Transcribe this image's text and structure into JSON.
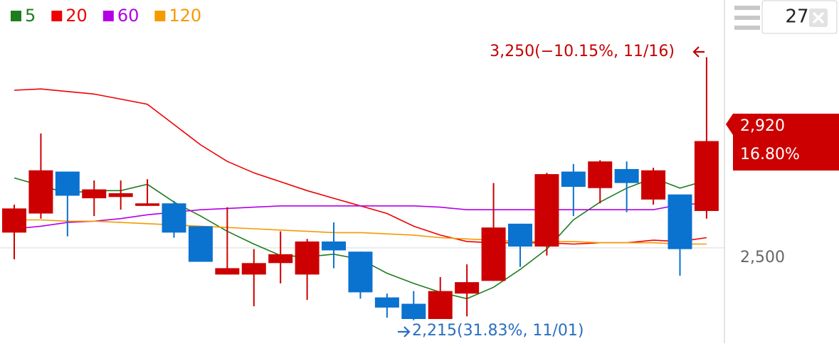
{
  "chart_data": {
    "type": "candlestick",
    "categories": [
      null,
      null,
      null,
      null,
      null,
      null,
      null,
      null,
      null,
      null,
      null,
      null,
      null,
      null,
      null,
      null,
      null,
      null,
      null,
      null,
      null,
      null,
      null,
      null,
      null,
      null,
      null
    ],
    "open": [
      2560,
      2635,
      2800,
      2695,
      2700,
      2665,
      2675,
      2585,
      2395,
      2395,
      2440,
      2395,
      2525,
      2485,
      2305,
      2280,
      2220,
      2320,
      2370,
      2595,
      2505,
      2800,
      2735,
      2810,
      2690,
      2710,
      2645
    ],
    "close": [
      2655,
      2805,
      2705,
      2730,
      2715,
      2675,
      2560,
      2445,
      2420,
      2440,
      2475,
      2525,
      2490,
      2325,
      2265,
      2220,
      2330,
      2365,
      2580,
      2505,
      2790,
      2740,
      2840,
      2755,
      2805,
      2495,
      2920
    ],
    "high": [
      2670,
      2950,
      2800,
      2765,
      2765,
      2770,
      2685,
      2585,
      2660,
      2495,
      2565,
      2535,
      2600,
      2485,
      2320,
      2330,
      2385,
      2435,
      2755,
      2595,
      2795,
      2830,
      2845,
      2840,
      2815,
      2710,
      3250
    ],
    "low": [
      2455,
      2615,
      2545,
      2625,
      2650,
      2665,
      2540,
      2445,
      2395,
      2270,
      2360,
      2295,
      2420,
      2300,
      2225,
      2215,
      2220,
      2230,
      2370,
      2425,
      2470,
      2625,
      2675,
      2640,
      2670,
      2390,
      2615
    ],
    "up_color": "#cc0000",
    "down_color": "#0a72cf",
    "ma": [
      {
        "name": "5",
        "color": "#1e7d1e",
        "values": [
          2775,
          2745,
          2715,
          2725,
          2725,
          2750,
          2680,
          2625,
          2565,
          2515,
          2470,
          2465,
          2475,
          2455,
          2400,
          2360,
          2325,
          2300,
          2345,
          2415,
          2495,
          2610,
          2680,
          2735,
          2775,
          2735,
          2765
        ]
      },
      {
        "name": "20",
        "color": "#ee0000",
        "values": [
          3120,
          3125,
          3115,
          3105,
          3085,
          3065,
          2985,
          2905,
          2840,
          2795,
          2760,
          2725,
          2695,
          2665,
          2635,
          2585,
          2550,
          2525,
          2520,
          2520,
          2520,
          2515,
          2520,
          2520,
          2530,
          2525,
          2540
        ]
      },
      {
        "name": "60",
        "color": "#b400e6",
        "values": [
          2575,
          2585,
          2600,
          2605,
          2615,
          2630,
          2640,
          2650,
          2655,
          2660,
          2665,
          2665,
          2665,
          2665,
          2665,
          2665,
          2660,
          2650,
          2650,
          2650,
          2650,
          2650,
          2650,
          2650,
          2650,
          2670,
          2675
        ]
      },
      {
        "name": "120",
        "color": "#f59a00",
        "values": [
          2610,
          2610,
          2605,
          2605,
          2600,
          2595,
          2590,
          2585,
          2580,
          2575,
          2570,
          2565,
          2560,
          2560,
          2555,
          2550,
          2540,
          2535,
          2530,
          2525,
          2525,
          2525,
          2520,
          2520,
          2520,
          2515,
          2515
        ]
      }
    ],
    "ylim": [
      2125,
      3475
    ],
    "yticks": [
      {
        "value": 2500,
        "label": "2,500"
      }
    ],
    "grid": true,
    "high_annotation": "3,250(−10.15%, 11/16)",
    "low_annotation": "2,215(31.83%, 11/01)",
    "price_tag": {
      "price": "2,920",
      "change": "16.80%"
    },
    "period_input": "27"
  }
}
